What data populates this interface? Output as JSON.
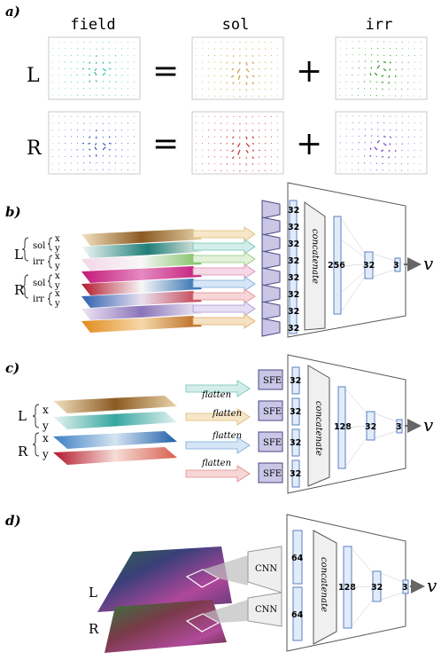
{
  "panel_a": {
    "label": "a)",
    "headers": [
      "field",
      "sol",
      "irr"
    ],
    "rows": [
      {
        "label": "L",
        "equals": "=",
        "plus": "+",
        "colors": [
          "#3bbfae",
          "#c9a44a",
          "#3f9a3a"
        ]
      },
      {
        "label": "R",
        "equals": "=",
        "plus": "+",
        "colors": [
          "#4a63c8",
          "#c83c3c",
          "#7a4ec8"
        ]
      }
    ]
  },
  "panel_b": {
    "label": "b)",
    "L": "L",
    "R": "R",
    "sol": "sol",
    "irr": "irr",
    "x": "x",
    "y": "y",
    "channel_sizes": [
      "32",
      "32",
      "32",
      "32",
      "32",
      "32",
      "32",
      "32"
    ],
    "concat_label": "concatenate",
    "dense": [
      "256",
      "32",
      "3"
    ],
    "output": "v"
  },
  "panel_c": {
    "label": "c)",
    "L": "L",
    "R": "R",
    "x": "x",
    "y": "y",
    "flatten_label": "flatten",
    "sfe_label": "SFE",
    "channel_sizes": [
      "32",
      "32",
      "32",
      "32"
    ],
    "concat_label": "concatenate",
    "dense": [
      "128",
      "32",
      "3"
    ],
    "output": "v"
  },
  "panel_d": {
    "label": "d)",
    "L": "L",
    "R": "R",
    "cnn_label": "CNN",
    "channel_sizes": [
      "64",
      "64"
    ],
    "concat_label": "concatenate",
    "dense": [
      "128",
      "32",
      "3"
    ],
    "output": "v"
  },
  "colors": {
    "box_border": "#c9c9c9",
    "trap_fill": "#c9c6e6",
    "trap_stroke": "#4b4680",
    "vec_fill": "#e2ecf8",
    "vec_stroke": "#5b7fc4",
    "concat_fill": "#f0f0f0",
    "frame": "#555555"
  }
}
